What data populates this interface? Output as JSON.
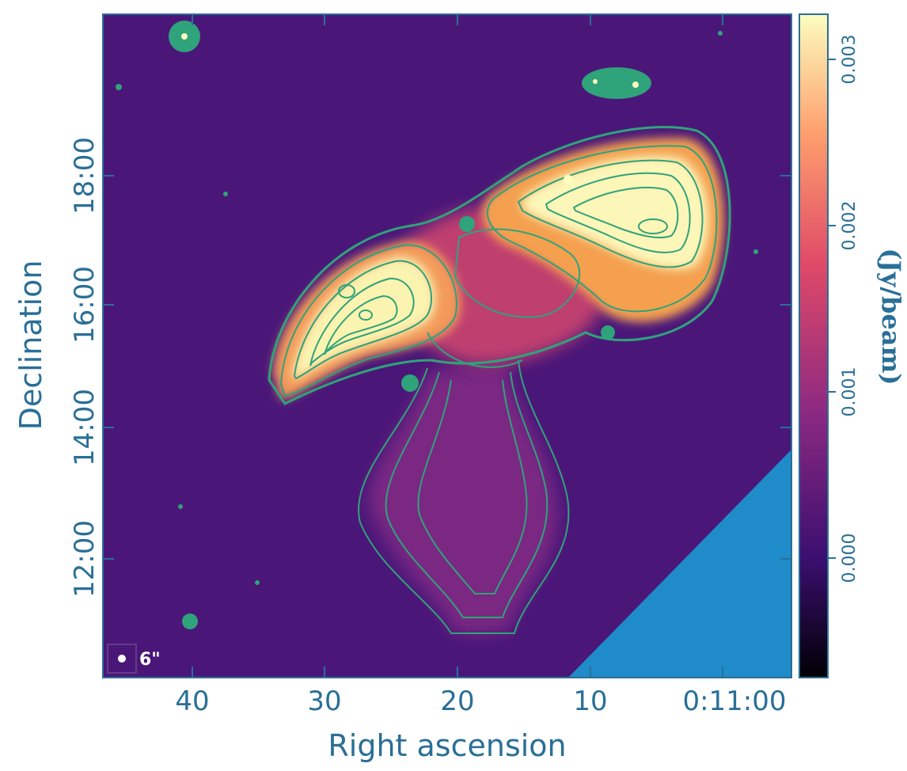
{
  "image": {
    "xlabel": "Right ascension",
    "ylabel": "Declination",
    "x_ticks": [
      "40",
      "30",
      "20",
      "10",
      "0:11:00"
    ],
    "y_ticks": [
      "12:00",
      "14:00",
      "16:00",
      "18:00"
    ],
    "beam_label": "6\"",
    "colorbar": {
      "label": "(Jy/beam)",
      "ticks": [
        "0.000",
        "0.001",
        "0.002",
        "0.003"
      ],
      "colormap": [
        "#000004",
        "#3b0f70",
        "#8c2981",
        "#de4968",
        "#fe9f6d",
        "#fcfdbf"
      ]
    },
    "colors": {
      "background": "#4a1779",
      "contour": "#2fa37a",
      "axis": "#2a6f97",
      "mask": "#1f8bc9"
    }
  }
}
